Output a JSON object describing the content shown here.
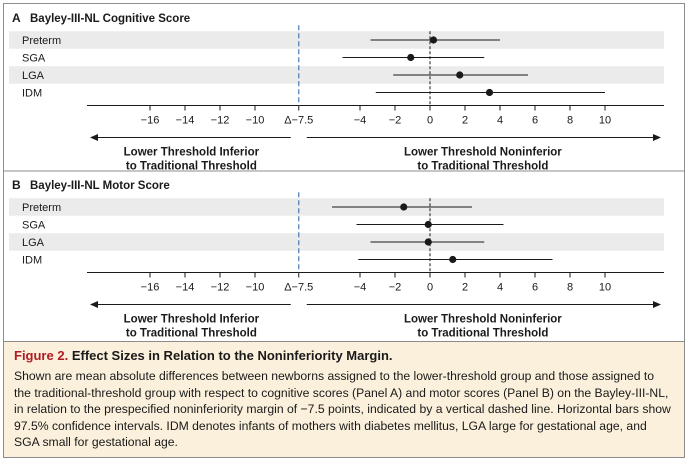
{
  "chart_data": [
    {
      "type": "forest",
      "panel_letter": "A",
      "title": "Bayley-III-NL Cognitive Score",
      "categories": [
        "Preterm",
        "SGA",
        "LGA",
        "IDM"
      ],
      "estimates": [
        0.2,
        -1.1,
        1.7,
        3.4
      ],
      "ci_low": [
        -3.4,
        -5.0,
        -2.1,
        -3.1
      ],
      "ci_high": [
        4.0,
        3.1,
        5.6,
        10.0
      ],
      "noninferiority_margin": -7.5,
      "xticks": [
        -16,
        -14,
        -12,
        -10,
        -4,
        -2,
        0,
        2,
        4,
        6,
        8,
        10
      ],
      "xtick_labels": [
        "−16",
        "−14",
        "−12",
        "−10",
        "−4",
        "−2",
        "0",
        "2",
        "4",
        "6",
        "8",
        "10"
      ],
      "margin_label": "Δ−7.5",
      "xlim": [
        -18.5,
        11.5
      ],
      "left_arrow_label": [
        "Lower Threshold Inferior",
        "to Traditional Threshold"
      ],
      "right_arrow_label": [
        "Lower Threshold Noninferior",
        "to Traditional Threshold"
      ]
    },
    {
      "type": "forest",
      "panel_letter": "B",
      "title": "Bayley-III-NL Motor Score",
      "categories": [
        "Preterm",
        "SGA",
        "LGA",
        "IDM"
      ],
      "estimates": [
        -1.5,
        -0.1,
        -0.1,
        1.3
      ],
      "ci_low": [
        -5.6,
        -4.2,
        -3.4,
        -4.1
      ],
      "ci_high": [
        2.4,
        4.2,
        3.1,
        7.0
      ],
      "noninferiority_margin": -7.5,
      "xticks": [
        -16,
        -14,
        -12,
        -10,
        -4,
        -2,
        0,
        2,
        4,
        6,
        8,
        10
      ],
      "xtick_labels": [
        "−16",
        "−14",
        "−12",
        "−10",
        "−4",
        "−2",
        "0",
        "2",
        "4",
        "6",
        "8",
        "10"
      ],
      "margin_label": "Δ−7.5",
      "xlim": [
        -18.5,
        11.5
      ],
      "left_arrow_label": [
        "Lower Threshold Inferior",
        "to Traditional Threshold"
      ],
      "right_arrow_label": [
        "Lower Threshold Noninferior",
        "to Traditional Threshold"
      ]
    }
  ],
  "caption": {
    "figure_label": "Figure 2.",
    "title": "Effect Sizes in Relation to the Noninferiority Margin.",
    "body": "Shown are mean absolute differences between newborns assigned to the lower-threshold group and those assigned to the traditional-threshold group with respect to cognitive scores (Panel A) and motor scores (Panel B) on the Bayley-III-NL, in relation to the prespecified noninferiority margin of −7.5 points, indicated by a vertical dashed line. Horizontal bars show 97.5% confidence intervals. IDM denotes infants of mothers with diabetes mellitus, LGA large for gestational age, and SGA small for gestational age."
  },
  "colors": {
    "row_band": "#ebebeb",
    "margin_line": "#4a78b4",
    "caption_bg": "#fbf0dc",
    "figure_label": "#b01c24"
  }
}
